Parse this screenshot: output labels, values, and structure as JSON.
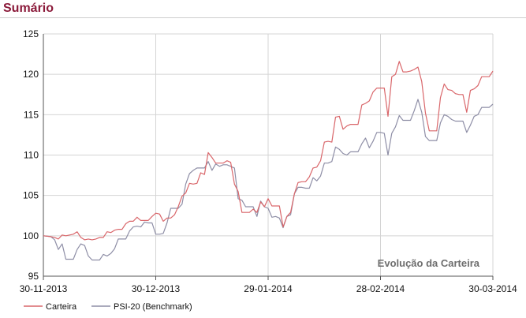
{
  "page": {
    "title": "Sumário"
  },
  "chart_data": {
    "type": "line",
    "annotation": "Evolução da Carteira",
    "ylim": [
      95,
      125
    ],
    "yticks": [
      95,
      100,
      105,
      110,
      115,
      120,
      125
    ],
    "x_tick_labels": [
      "30-11-2013",
      "30-12-2013",
      "29-01-2014",
      "28-02-2014",
      "30-03-2014"
    ],
    "x_tick_index": [
      0,
      30,
      60,
      90,
      120
    ],
    "x_range_index": [
      0,
      120
    ],
    "grid": true,
    "legend_position": "bottom-left",
    "series": [
      {
        "name": "Carteira",
        "color": "#d9666a",
        "points": [
          [
            0,
            100.0
          ],
          [
            2,
            99.9
          ],
          [
            3,
            99.8
          ],
          [
            4,
            99.6
          ],
          [
            5,
            100.1
          ],
          [
            6,
            100.0
          ],
          [
            7,
            100.1
          ],
          [
            8,
            100.2
          ],
          [
            9,
            100.5
          ],
          [
            10,
            99.8
          ],
          [
            11,
            99.5
          ],
          [
            12,
            99.6
          ],
          [
            13,
            99.5
          ],
          [
            14,
            99.6
          ],
          [
            15,
            99.8
          ],
          [
            16,
            99.8
          ],
          [
            17,
            100.5
          ],
          [
            18,
            100.4
          ],
          [
            19,
            100.7
          ],
          [
            20,
            100.8
          ],
          [
            21,
            100.8
          ],
          [
            22,
            101.5
          ],
          [
            23,
            101.8
          ],
          [
            24,
            101.8
          ],
          [
            25,
            102.3
          ],
          [
            26,
            101.9
          ],
          [
            27,
            101.9
          ],
          [
            28,
            101.9
          ],
          [
            29,
            102.4
          ],
          [
            30,
            102.8
          ],
          [
            31,
            102.7
          ],
          [
            32,
            101.8
          ],
          [
            33,
            102.2
          ],
          [
            34,
            102.2
          ],
          [
            35,
            102.6
          ],
          [
            36,
            103.6
          ],
          [
            37,
            104.9
          ],
          [
            38,
            105.3
          ],
          [
            39,
            106.5
          ],
          [
            40,
            106.4
          ],
          [
            41,
            106.5
          ],
          [
            42,
            107.8
          ],
          [
            43,
            107.6
          ],
          [
            44,
            110.3
          ],
          [
            45,
            109.7
          ],
          [
            46,
            109.0
          ],
          [
            47,
            109.0
          ],
          [
            48,
            109.0
          ],
          [
            49,
            109.3
          ],
          [
            50,
            109.1
          ],
          [
            51,
            106.4
          ],
          [
            52,
            105.5
          ],
          [
            53,
            102.9
          ],
          [
            54,
            102.9
          ],
          [
            55,
            102.9
          ],
          [
            56,
            103.3
          ],
          [
            57,
            102.9
          ],
          [
            58,
            104.2
          ],
          [
            59,
            103.6
          ],
          [
            60,
            104.6
          ],
          [
            61,
            103.7
          ],
          [
            62,
            103.7
          ],
          [
            63,
            103.7
          ],
          [
            64,
            101.1
          ],
          [
            65,
            102.4
          ],
          [
            66,
            102.9
          ],
          [
            67,
            105.2
          ],
          [
            68,
            106.6
          ],
          [
            69,
            106.7
          ],
          [
            70,
            106.7
          ],
          [
            71,
            107.3
          ],
          [
            72,
            108.4
          ],
          [
            73,
            108.5
          ],
          [
            74,
            109.3
          ],
          [
            75,
            111.6
          ],
          [
            76,
            111.7
          ],
          [
            77,
            111.6
          ],
          [
            78,
            114.7
          ],
          [
            79,
            114.8
          ],
          [
            80,
            113.2
          ],
          [
            81,
            113.6
          ],
          [
            82,
            113.8
          ],
          [
            83,
            113.8
          ],
          [
            84,
            113.8
          ],
          [
            85,
            116.2
          ],
          [
            86,
            116.4
          ],
          [
            87,
            116.7
          ],
          [
            88,
            117.8
          ],
          [
            89,
            118.3
          ],
          [
            90,
            118.3
          ],
          [
            91,
            118.3
          ],
          [
            92,
            114.8
          ],
          [
            93,
            119.7
          ],
          [
            94,
            120.0
          ],
          [
            95,
            121.6
          ],
          [
            96,
            120.3
          ],
          [
            97,
            120.3
          ],
          [
            98,
            120.4
          ],
          [
            99,
            120.6
          ],
          [
            100,
            120.9
          ],
          [
            101,
            119.1
          ],
          [
            102,
            115.2
          ],
          [
            103,
            113.0
          ],
          [
            104,
            113.0
          ],
          [
            105,
            113.0
          ],
          [
            106,
            117.1
          ],
          [
            107,
            118.8
          ],
          [
            108,
            118.1
          ],
          [
            109,
            118.0
          ],
          [
            110,
            117.6
          ],
          [
            111,
            117.5
          ],
          [
            112,
            117.5
          ],
          [
            113,
            115.3
          ],
          [
            114,
            118.0
          ],
          [
            115,
            118.2
          ],
          [
            116,
            118.6
          ],
          [
            117,
            119.7
          ],
          [
            118,
            119.7
          ],
          [
            119,
            119.7
          ],
          [
            120,
            120.4
          ]
        ]
      },
      {
        "name": "PSI-20 (Benchmark)",
        "color": "#8e8ea6",
        "points": [
          [
            0,
            100.0
          ],
          [
            2,
            99.9
          ],
          [
            3,
            99.5
          ],
          [
            4,
            98.3
          ],
          [
            5,
            99.0
          ],
          [
            6,
            97.1
          ],
          [
            7,
            97.1
          ],
          [
            8,
            97.1
          ],
          [
            9,
            98.3
          ],
          [
            10,
            99.0
          ],
          [
            11,
            98.8
          ],
          [
            12,
            97.5
          ],
          [
            13,
            97.0
          ],
          [
            14,
            97.0
          ],
          [
            15,
            97.0
          ],
          [
            16,
            97.7
          ],
          [
            17,
            97.5
          ],
          [
            18,
            97.8
          ],
          [
            19,
            98.4
          ],
          [
            20,
            99.6
          ],
          [
            21,
            99.6
          ],
          [
            22,
            99.6
          ],
          [
            23,
            100.6
          ],
          [
            24,
            101.1
          ],
          [
            25,
            101.2
          ],
          [
            26,
            101.1
          ],
          [
            27,
            101.7
          ],
          [
            28,
            101.6
          ],
          [
            29,
            101.6
          ],
          [
            30,
            100.2
          ],
          [
            31,
            100.2
          ],
          [
            32,
            100.3
          ],
          [
            33,
            101.6
          ],
          [
            34,
            103.4
          ],
          [
            35,
            103.4
          ],
          [
            36,
            103.4
          ],
          [
            37,
            103.9
          ],
          [
            38,
            106.4
          ],
          [
            39,
            107.7
          ],
          [
            40,
            108.1
          ],
          [
            41,
            108.4
          ],
          [
            42,
            108.4
          ],
          [
            43,
            108.4
          ],
          [
            44,
            109.2
          ],
          [
            45,
            108.1
          ],
          [
            46,
            108.9
          ],
          [
            47,
            108.6
          ],
          [
            48,
            108.8
          ],
          [
            49,
            108.8
          ],
          [
            50,
            108.6
          ],
          [
            51,
            108.4
          ],
          [
            52,
            104.6
          ],
          [
            53,
            104.4
          ],
          [
            54,
            103.6
          ],
          [
            55,
            103.6
          ],
          [
            56,
            103.6
          ],
          [
            57,
            102.4
          ],
          [
            58,
            104.3
          ],
          [
            59,
            103.6
          ],
          [
            60,
            103.4
          ],
          [
            61,
            102.3
          ],
          [
            62,
            102.4
          ],
          [
            63,
            102.2
          ],
          [
            64,
            101.0
          ],
          [
            65,
            102.4
          ],
          [
            66,
            102.6
          ],
          [
            67,
            105.2
          ],
          [
            68,
            106.0
          ],
          [
            69,
            106.0
          ],
          [
            70,
            105.9
          ],
          [
            71,
            105.9
          ],
          [
            72,
            107.2
          ],
          [
            73,
            106.8
          ],
          [
            74,
            107.4
          ],
          [
            75,
            109.0
          ],
          [
            76,
            109.0
          ],
          [
            77,
            109.2
          ],
          [
            78,
            111.0
          ],
          [
            79,
            110.7
          ],
          [
            80,
            110.2
          ],
          [
            81,
            110.0
          ],
          [
            82,
            110.4
          ],
          [
            83,
            110.4
          ],
          [
            84,
            110.4
          ],
          [
            85,
            111.4
          ],
          [
            86,
            112.1
          ],
          [
            87,
            110.9
          ],
          [
            88,
            111.7
          ],
          [
            89,
            112.8
          ],
          [
            90,
            112.8
          ],
          [
            91,
            112.7
          ],
          [
            92,
            110.0
          ],
          [
            93,
            112.7
          ],
          [
            94,
            113.5
          ],
          [
            95,
            114.9
          ],
          [
            96,
            114.3
          ],
          [
            97,
            114.3
          ],
          [
            98,
            114.3
          ],
          [
            99,
            115.5
          ],
          [
            100,
            116.9
          ],
          [
            101,
            115.3
          ],
          [
            102,
            112.3
          ],
          [
            103,
            111.8
          ],
          [
            104,
            111.8
          ],
          [
            105,
            111.8
          ],
          [
            106,
            114.0
          ],
          [
            107,
            115.0
          ],
          [
            108,
            114.8
          ],
          [
            109,
            114.4
          ],
          [
            110,
            114.2
          ],
          [
            111,
            114.2
          ],
          [
            112,
            114.2
          ],
          [
            113,
            112.8
          ],
          [
            114,
            113.7
          ],
          [
            115,
            114.8
          ],
          [
            116,
            115.0
          ],
          [
            117,
            115.9
          ],
          [
            118,
            115.9
          ],
          [
            119,
            115.9
          ],
          [
            120,
            116.3
          ]
        ]
      }
    ]
  }
}
